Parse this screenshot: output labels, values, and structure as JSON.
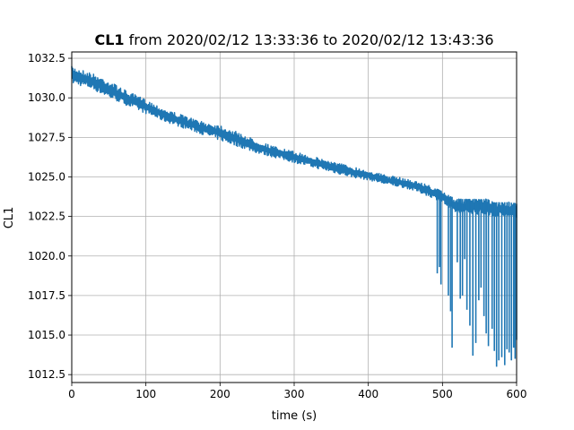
{
  "chart_data": {
    "type": "line",
    "title": {
      "bold": "CL1",
      "rest": " from 2020/02/12 13:33:36 to 2020/02/12 13:43:36"
    },
    "xlabel": "time (s)",
    "ylabel": "CL1",
    "xlim": [
      0,
      600
    ],
    "ylim": [
      1012.0,
      1032.9
    ],
    "xticks": [
      0,
      100,
      200,
      300,
      400,
      500,
      600
    ],
    "xtick_labels": [
      "0",
      "100",
      "200",
      "300",
      "400",
      "500",
      "600"
    ],
    "yticks": [
      1012.5,
      1015.0,
      1017.5,
      1020.0,
      1022.5,
      1025.0,
      1027.5,
      1030.0,
      1032.5
    ],
    "ytick_labels": [
      "1012.5",
      "1015.0",
      "1017.5",
      "1020.0",
      "1022.5",
      "1025.0",
      "1027.5",
      "1030.0",
      "1032.5"
    ],
    "grid": true,
    "series": [
      {
        "color": "#1f77b4",
        "x": [
          0,
          25,
          50,
          75,
          100,
          125,
          150,
          175,
          200,
          225,
          250,
          275,
          300,
          325,
          350,
          375,
          400,
          425,
          450,
          475,
          500,
          510,
          520,
          530,
          540,
          550,
          560,
          570,
          580,
          590,
          600
        ],
        "upper": [
          1032.0,
          1031.6,
          1031.1,
          1030.4,
          1029.9,
          1029.3,
          1028.9,
          1028.5,
          1028.3,
          1027.8,
          1027.3,
          1026.9,
          1026.6,
          1026.3,
          1026.0,
          1025.7,
          1025.4,
          1025.1,
          1024.9,
          1024.6,
          1024.1,
          1023.8,
          1023.6,
          1023.6,
          1023.6,
          1023.6,
          1023.6,
          1023.4,
          1023.4,
          1023.4,
          1023.3
        ],
        "lower": [
          1030.9,
          1030.6,
          1030.0,
          1029.5,
          1029.0,
          1028.5,
          1028.1,
          1027.7,
          1027.3,
          1026.9,
          1026.5,
          1026.2,
          1025.9,
          1025.6,
          1025.3,
          1025.0,
          1024.8,
          1024.5,
          1024.3,
          1023.9,
          1023.4,
          1022.9,
          1022.7,
          1022.6,
          1022.7,
          1022.6,
          1022.6,
          1022.5,
          1022.5,
          1022.4,
          1022.3
        ],
        "dips": [
          [
            493,
            1018.9
          ],
          [
            496,
            1019.3
          ],
          [
            498,
            1018.2
          ],
          [
            508,
            1017.5
          ],
          [
            511,
            1016.5
          ],
          [
            513,
            1014.2
          ],
          [
            520,
            1019.6
          ],
          [
            524,
            1017.3
          ],
          [
            527,
            1017.5
          ],
          [
            530,
            1019.8
          ],
          [
            533,
            1016.6
          ],
          [
            537,
            1015.6
          ],
          [
            541,
            1013.7
          ],
          [
            545,
            1014.5
          ],
          [
            549,
            1017.2
          ],
          [
            552,
            1018.0
          ],
          [
            556,
            1016.2
          ],
          [
            559,
            1015.1
          ],
          [
            562,
            1014.3
          ],
          [
            567,
            1015.4
          ],
          [
            570,
            1014.0
          ],
          [
            573,
            1013.0
          ],
          [
            576,
            1013.4
          ],
          [
            580,
            1013.6
          ],
          [
            584,
            1013.1
          ],
          [
            587,
            1014.1
          ],
          [
            590,
            1013.9
          ],
          [
            593,
            1013.4
          ],
          [
            596,
            1014.2
          ],
          [
            598,
            1013.5
          ],
          [
            600,
            1014.7
          ]
        ]
      }
    ]
  }
}
